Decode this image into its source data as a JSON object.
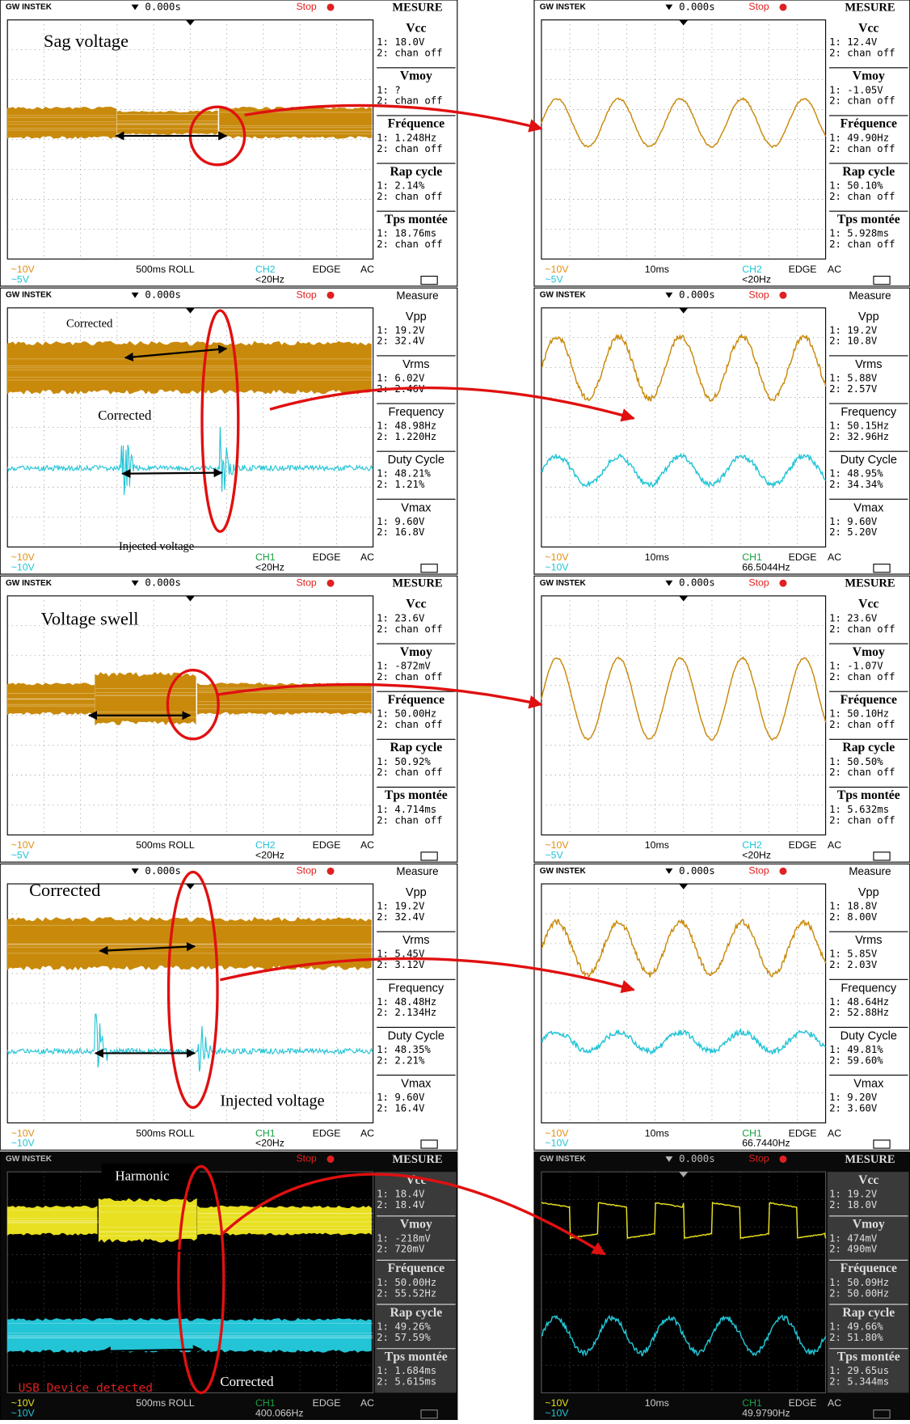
{
  "panels": [
    {
      "header": {
        "brand": "GW INSTEK",
        "time": "0.000s",
        "status": "Stop",
        "title": "MESURE"
      },
      "measures": [
        {
          "label": "Vcc",
          "lines": [
            "1: 18.0V",
            "2: chan off"
          ]
        },
        {
          "label": "Vmoy",
          "lines": [
            "1:  ?",
            "2: chan off"
          ]
        },
        {
          "label": "Fréquence",
          "lines": [
            "1: 1.248Hz",
            "2: chan off"
          ]
        },
        {
          "label": "Rap cycle",
          "lines": [
            "1: 2.14%",
            "2: chan off"
          ]
        },
        {
          "label": "Tps montée",
          "lines": [
            "1: 18.76ms",
            "2: chan off"
          ]
        }
      ],
      "footer": [
        [
          "~10V",
          "500ms ROLL",
          "CH2",
          "EDGE",
          "AC"
        ],
        [
          "~5V",
          "<20Hz"
        ]
      ],
      "annotations": [
        "Sag voltage"
      ]
    },
    {
      "header": {
        "brand": "GW INSTEK",
        "time": "0.000s",
        "status": "Stop",
        "title": "MESURE"
      },
      "measures": [
        {
          "label": "Vcc",
          "lines": [
            "1: 12.4V",
            "2: chan off"
          ]
        },
        {
          "label": "Vmoy",
          "lines": [
            "1: -1.05V",
            "2: chan off"
          ]
        },
        {
          "label": "Fréquence",
          "lines": [
            "1: 49.90Hz",
            "2: chan off"
          ]
        },
        {
          "label": "Rap cycle",
          "lines": [
            "1: 50.10%",
            "2: chan off"
          ]
        },
        {
          "label": "Tps montée",
          "lines": [
            "1: 5.928ms",
            "2: chan off"
          ]
        }
      ],
      "footer": [
        [
          "~10V",
          "10ms",
          "CH2",
          "EDGE",
          "AC"
        ],
        [
          "~5V",
          "<20Hz"
        ]
      ],
      "annotations": []
    },
    {
      "header": {
        "brand": "GW INSTEK",
        "time": "0.000s",
        "status": "Stop",
        "title": "Measure"
      },
      "measures": [
        {
          "label": "Vpp",
          "lines": [
            "1: 19.2V",
            "2: 32.4V"
          ]
        },
        {
          "label": "Vrms",
          "lines": [
            "1: 6.02V",
            "2: 2.46V"
          ]
        },
        {
          "label": "Frequency",
          "lines": [
            "1: 48.98Hz",
            "2: 1.220Hz"
          ]
        },
        {
          "label": "Duty Cycle",
          "lines": [
            "1: 48.21%",
            "2: 1.21%"
          ]
        },
        {
          "label": "Vmax",
          "lines": [
            "1: 9.60V",
            "2: 16.8V"
          ]
        }
      ],
      "footer": [
        [
          "~10V",
          "CH1",
          "EDGE",
          "AC"
        ],
        [
          "~10V",
          "<20Hz"
        ]
      ],
      "annotations": [
        "Corrected",
        "Corrected",
        "Injected voltage"
      ]
    },
    {
      "header": {
        "brand": "GW INSTEK",
        "time": "0.000s",
        "status": "Stop",
        "title": "Measure"
      },
      "measures": [
        {
          "label": "Vpp",
          "lines": [
            "1: 19.2V",
            "2: 10.8V"
          ]
        },
        {
          "label": "Vrms",
          "lines": [
            "1: 5.88V",
            "2: 2.57V"
          ]
        },
        {
          "label": "Frequency",
          "lines": [
            "1: 50.15Hz",
            "2: 32.96Hz"
          ]
        },
        {
          "label": "Duty Cycle",
          "lines": [
            "1: 48.95%",
            "2: 34.34%"
          ]
        },
        {
          "label": "Vmax",
          "lines": [
            "1: 9.60V",
            "2: 5.20V"
          ]
        }
      ],
      "footer": [
        [
          "~10V",
          "10ms",
          "CH1",
          "EDGE",
          "AC"
        ],
        [
          "~10V",
          "66.5044Hz"
        ]
      ],
      "annotations": []
    },
    {
      "header": {
        "brand": "GW INSTEK",
        "time": "0.000s",
        "status": "Stop",
        "title": "MESURE"
      },
      "measures": [
        {
          "label": "Vcc",
          "lines": [
            "1: 23.6V",
            "2: chan off"
          ]
        },
        {
          "label": "Vmoy",
          "lines": [
            "1: -872mV",
            "2: chan off"
          ]
        },
        {
          "label": "Fréquence",
          "lines": [
            "1: 50.00Hz",
            "2: chan off"
          ]
        },
        {
          "label": "Rap cycle",
          "lines": [
            "1: 50.92%",
            "2: chan off"
          ]
        },
        {
          "label": "Tps montée",
          "lines": [
            "1: 4.714ms",
            "2: chan off"
          ]
        }
      ],
      "footer": [
        [
          "~10V",
          "500ms ROLL",
          "CH2",
          "EDGE",
          "AC"
        ],
        [
          "~5V",
          "<20Hz"
        ]
      ],
      "annotations": [
        "Voltage swell"
      ]
    },
    {
      "header": {
        "brand": "GW INSTEK",
        "time": "0.000s",
        "status": "Stop",
        "title": "MESURE"
      },
      "measures": [
        {
          "label": "Vcc",
          "lines": [
            "1: 23.6V",
            "2: chan off"
          ]
        },
        {
          "label": "Vmoy",
          "lines": [
            "1: -1.07V",
            "2: chan off"
          ]
        },
        {
          "label": "Fréquence",
          "lines": [
            "1: 50.10Hz",
            "2: chan off"
          ]
        },
        {
          "label": "Rap cycle",
          "lines": [
            "1: 50.50%",
            "2: chan off"
          ]
        },
        {
          "label": "Tps montée",
          "lines": [
            "1: 5.632ms",
            "2: chan off"
          ]
        }
      ],
      "footer": [
        [
          "~10V",
          "10ms",
          "CH2",
          "EDGE",
          "AC"
        ],
        [
          "~5V",
          "<20Hz"
        ]
      ],
      "annotations": []
    },
    {
      "header": {
        "time": "0.000s",
        "status": "Stop",
        "title": "Measure"
      },
      "measures": [
        {
          "label": "Vpp",
          "lines": [
            "1: 19.2V",
            "2: 32.4V"
          ]
        },
        {
          "label": "Vrms",
          "lines": [
            "1: 5.45V",
            "2: 3.12V"
          ]
        },
        {
          "label": "Frequency",
          "lines": [
            "1: 48.48Hz",
            "2: 2.134Hz"
          ]
        },
        {
          "label": "Duty Cycle",
          "lines": [
            "1: 48.35%",
            "2: 2.21%"
          ]
        },
        {
          "label": "Vmax",
          "lines": [
            "1: 9.60V",
            "2: 16.4V"
          ]
        }
      ],
      "footer": [
        [
          "~10V",
          "500ms ROLL",
          "CH1",
          "EDGE",
          "AC"
        ],
        [
          "~10V",
          "<20Hz"
        ]
      ],
      "annotations": [
        "Corrected",
        "Injected voltage"
      ]
    },
    {
      "header": {
        "brand": "GW INSTEK",
        "time": "0.000s",
        "status": "Stop",
        "title": "Measure"
      },
      "measures": [
        {
          "label": "Vpp",
          "lines": [
            "1: 18.8V",
            "2: 8.00V"
          ]
        },
        {
          "label": "Vrms",
          "lines": [
            "1: 5.85V",
            "2: 2.03V"
          ]
        },
        {
          "label": "Frequency",
          "lines": [
            "1: 48.64Hz",
            "2: 52.88Hz"
          ]
        },
        {
          "label": "Duty Cycle",
          "lines": [
            "1: 49.81%",
            "2: 59.60%"
          ]
        },
        {
          "label": "Vmax",
          "lines": [
            "1: 9.20V",
            "2: 3.60V"
          ]
        }
      ],
      "footer": [
        [
          "~10V",
          "10ms",
          "CH1",
          "EDGE",
          "AC"
        ],
        [
          "~10V",
          "66.7440Hz"
        ]
      ],
      "annotations": []
    },
    {
      "header": {
        "brand": "GW INSTEK",
        "status": "Stop",
        "title": "MESURE"
      },
      "measures": [
        {
          "label": "Vcc",
          "lines": [
            "1: 18.4V",
            "2: 18.4V"
          ]
        },
        {
          "label": "Vmoy",
          "lines": [
            "1: -218mV",
            "2: 720mV"
          ]
        },
        {
          "label": "Fréquence",
          "lines": [
            "1: 50.00Hz",
            "2: 55.52Hz"
          ]
        },
        {
          "label": "Rap cycle",
          "lines": [
            "1: 49.26%",
            "2: 57.59%"
          ]
        },
        {
          "label": "Tps montée",
          "lines": [
            "1: 1.684ms",
            "2: 5.615ms"
          ]
        }
      ],
      "footer": [
        [
          "~10V",
          "500ms ROLL",
          "CH1",
          "EDGE",
          "AC"
        ],
        [
          "~10V",
          "400.066Hz"
        ]
      ],
      "annotations": [
        "Harmonic",
        "Corrected",
        "USB Device detected"
      ]
    },
    {
      "header": {
        "brand": "GW INSTEK",
        "time": "0.000s",
        "status": "Stop",
        "title": "MESURE"
      },
      "measures": [
        {
          "label": "Vcc",
          "lines": [
            "1: 19.2V",
            "2: 18.0V"
          ]
        },
        {
          "label": "Vmoy",
          "lines": [
            "1: 474mV",
            "2: 490mV"
          ]
        },
        {
          "label": "Fréquence",
          "lines": [
            "1: 50.09Hz",
            "2: 50.00Hz"
          ]
        },
        {
          "label": "Rap cycle",
          "lines": [
            "1: 49.66%",
            "2: 51.80%"
          ]
        },
        {
          "label": "Tps montée",
          "lines": [
            "1: 29.65us",
            "2: 5.344ms"
          ]
        }
      ],
      "footer": [
        [
          "~10V",
          "10ms",
          "CH1",
          "EDGE",
          "AC"
        ],
        [
          "~10V",
          "49.9790Hz"
        ]
      ],
      "annotations": []
    }
  ]
}
